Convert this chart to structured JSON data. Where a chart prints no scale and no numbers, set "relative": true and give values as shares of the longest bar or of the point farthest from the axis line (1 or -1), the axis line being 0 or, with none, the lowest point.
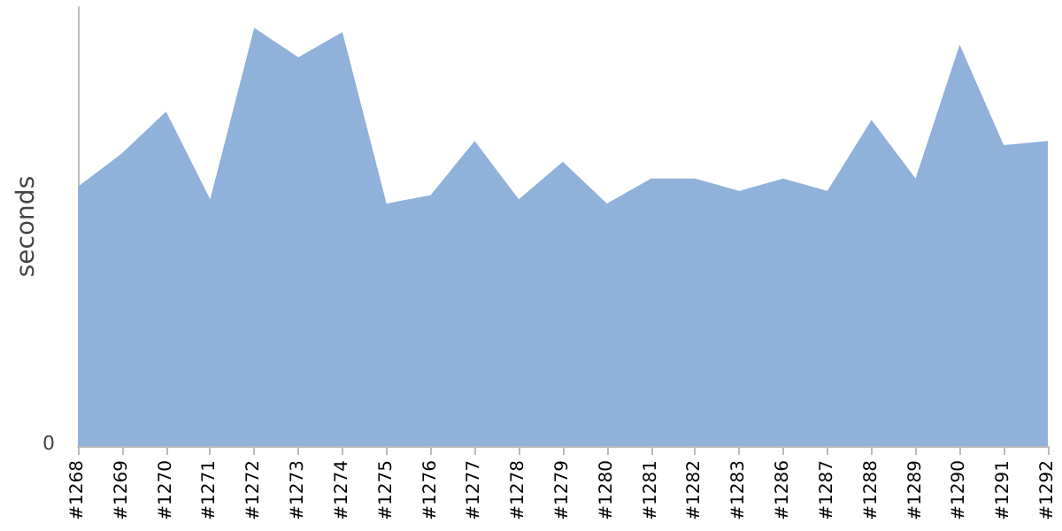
{
  "chart_data": {
    "type": "area",
    "relative": true,
    "ylabel": "seconds",
    "categories": [
      "#1268",
      "#1269",
      "#1270",
      "#1271",
      "#1272",
      "#1273",
      "#1274",
      "#1275",
      "#1276",
      "#1277",
      "#1278",
      "#1279",
      "#1280",
      "#1281",
      "#1282",
      "#1283",
      "#1286",
      "#1287",
      "#1288",
      "#1289",
      "#1290",
      "#1291",
      "#1292"
    ],
    "series": [
      {
        "color": "#8fb1da",
        "values": [
          0.62,
          0.7,
          0.8,
          0.59,
          1,
          0.93,
          0.99,
          0.58,
          0.6,
          0.73,
          0.59,
          0.68,
          0.58,
          0.64,
          0.64,
          0.61,
          0.64,
          0.61,
          0.78,
          0.64,
          0.96,
          0.72,
          0.73
        ]
      }
    ],
    "annotations": [
      "0"
    ]
  }
}
